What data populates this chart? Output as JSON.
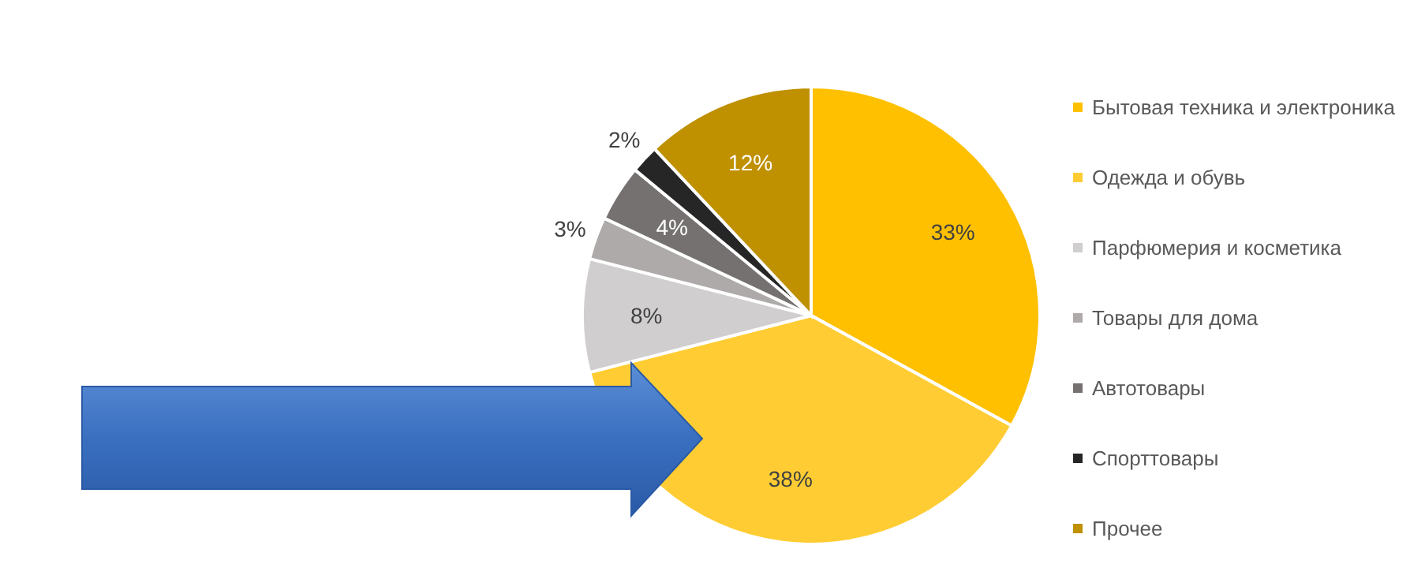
{
  "chart_data": {
    "type": "pie",
    "categories": [
      "Бытовая техника и электроника",
      "Одежда и обувь",
      "Парфюмерия и косметика",
      "Товары для дома",
      "Автотовары",
      "Спорттовары",
      "Прочее"
    ],
    "values": [
      33,
      38,
      8,
      3,
      4,
      2,
      12
    ],
    "colors": [
      "#ffc000",
      "#ffcd33",
      "#d0cece",
      "#aeaaaa",
      "#767171",
      "#262626",
      "#bf9000"
    ],
    "value_labels": [
      "33%",
      "38%",
      "8%",
      "3%",
      "4%",
      "2%",
      "12%"
    ],
    "legend": "right"
  }
}
